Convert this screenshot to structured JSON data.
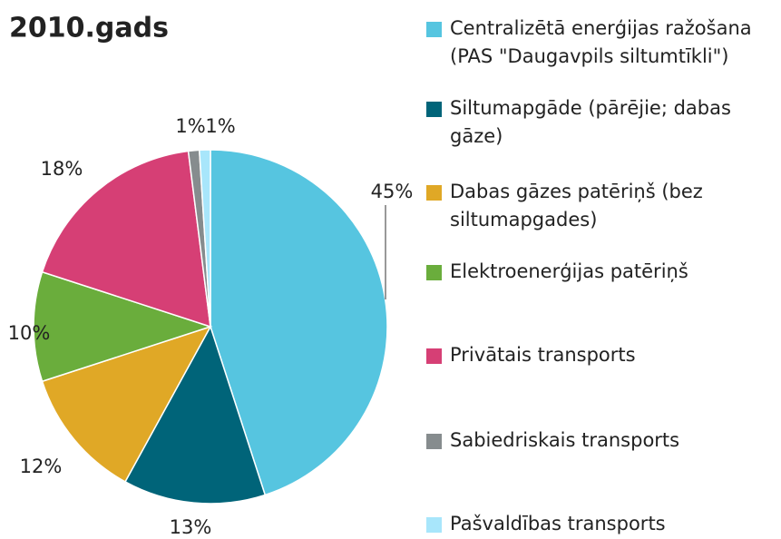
{
  "chart_data": {
    "type": "pie",
    "title": "2010.gads",
    "categories": [
      "Centralizētā enerģijas ražošana (PAS \"Daugavpils siltumtīkli\")",
      "Siltumapgāde (pārējie; dabas gāze)",
      "Dabas gāzes patēriņš (bez siltumapgades)",
      "Elektroenerģijas patēriņš",
      "Privātais transports",
      "Sabiedriskais transports",
      "Pašvaldības transports"
    ],
    "values": [
      45,
      13,
      12,
      10,
      18,
      1,
      1
    ],
    "value_labels": [
      "45%",
      "13%",
      "12%",
      "10%",
      "18%",
      "1%",
      "1%"
    ],
    "colors": [
      "#56c5e0",
      "#006479",
      "#e0a826",
      "#6aad3c",
      "#d63f75",
      "#868c8e",
      "#a8e6fb"
    ],
    "legend": "right"
  }
}
